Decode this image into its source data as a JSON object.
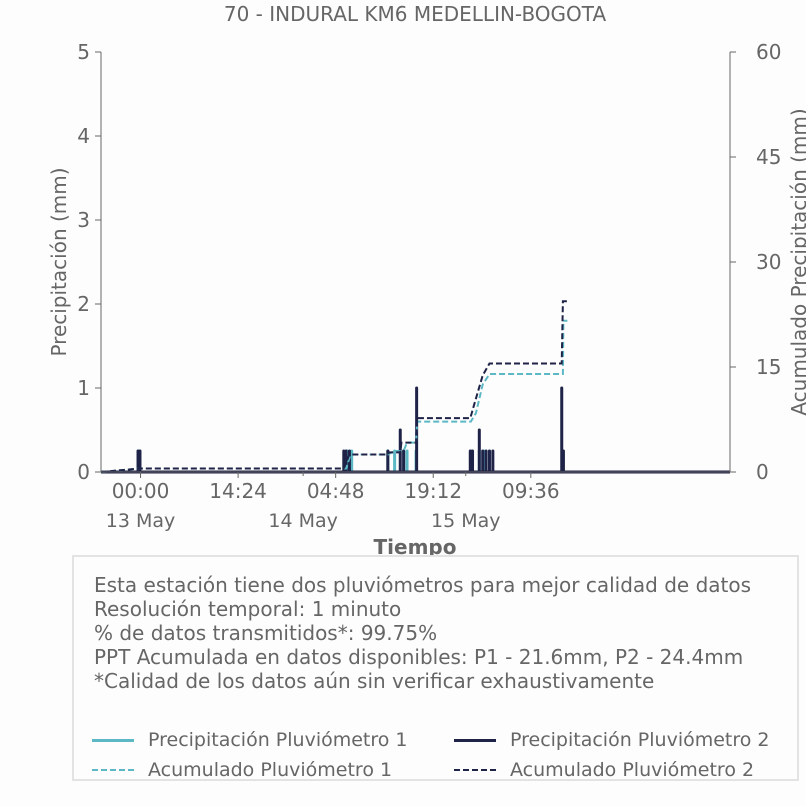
{
  "chart_data": {
    "type": "line",
    "title": "70 - INDURAL KM6 MEDELLIN-BOGOTA",
    "xlabel": "Tiempo",
    "ylabel_left": "Precipitación (mm)",
    "ylabel_right": "Acumulado Precipitación (mm)",
    "ylim_left": [
      0,
      5
    ],
    "ylim_right": [
      0,
      60
    ],
    "yticks_left": [
      "0",
      "1",
      "2",
      "3",
      "4",
      "5"
    ],
    "yticks_right": [
      "0",
      "15",
      "30",
      "45",
      "60"
    ],
    "xlim": [
      "2024-05-12 18:10",
      "2024-05-16 15:00"
    ],
    "xticks": [
      {
        "t": "2024-05-13 00:00",
        "label": "00:00"
      },
      {
        "t": "2024-05-13 14:24",
        "label": "14:24"
      },
      {
        "t": "2024-05-14 04:48",
        "label": "04:48"
      },
      {
        "t": "2024-05-14 19:12",
        "label": "19:12"
      },
      {
        "t": "2024-05-15 09:36",
        "label": "09:36"
      }
    ],
    "date_labels": [
      {
        "t": "2024-05-13 00:00",
        "label": "13 May"
      },
      {
        "t": "2024-05-14 00:00",
        "label": "14 May"
      },
      {
        "t": "2024-05-15 00:00",
        "label": "15 May"
      }
    ],
    "grid": false,
    "series": [
      {
        "name": "Precipitación Pluviómetro 1",
        "axis": "left",
        "style": "bar",
        "color": "#5cb8c4",
        "points": [
          [
            "2024-05-12 23:38",
            0.25
          ],
          [
            "2024-05-12 23:55",
            0.25
          ],
          [
            "2024-05-14 06:30",
            0.25
          ],
          [
            "2024-05-14 07:10",
            0.25
          ],
          [
            "2024-05-14 12:30",
            0.25
          ],
          [
            "2024-05-14 13:30",
            0.25
          ],
          [
            "2024-05-14 14:50",
            0.25
          ],
          [
            "2024-05-14 15:20",
            0.25
          ],
          [
            "2024-05-14 16:40",
            0.25
          ],
          [
            "2024-05-15 00:45",
            0.25
          ],
          [
            "2024-05-15 02:00",
            0.25
          ],
          [
            "2024-05-15 02:40",
            0.25
          ],
          [
            "2024-05-15 03:30",
            0.25
          ],
          [
            "2024-05-15 14:20",
            0.25
          ]
        ]
      },
      {
        "name": "Precipitación Pluviómetro 2",
        "axis": "left",
        "style": "bar",
        "color": "#1f2347",
        "points": [
          [
            "2024-05-12 23:38",
            0.25
          ],
          [
            "2024-05-12 23:55",
            0.25
          ],
          [
            "2024-05-14 06:00",
            0.25
          ],
          [
            "2024-05-14 06:20",
            0.25
          ],
          [
            "2024-05-14 06:50",
            0.25
          ],
          [
            "2024-05-14 12:30",
            0.25
          ],
          [
            "2024-05-14 14:20",
            0.5
          ],
          [
            "2024-05-14 14:50",
            0.25
          ],
          [
            "2024-05-14 16:45",
            1.0
          ],
          [
            "2024-05-15 00:40",
            0.25
          ],
          [
            "2024-05-15 01:00",
            0.25
          ],
          [
            "2024-05-15 02:00",
            0.5
          ],
          [
            "2024-05-15 02:30",
            0.25
          ],
          [
            "2024-05-15 03:00",
            0.25
          ],
          [
            "2024-05-15 03:30",
            0.25
          ],
          [
            "2024-05-15 04:00",
            0.25
          ],
          [
            "2024-05-15 14:10",
            1.0
          ],
          [
            "2024-05-15 14:25",
            0.25
          ]
        ]
      },
      {
        "name": "Acumulado Pluviómetro 1",
        "axis": "right",
        "style": "dashed",
        "color": "#5cb8c4",
        "points": [
          [
            "2024-05-12 18:10",
            0
          ],
          [
            "2024-05-12 23:55",
            0.5
          ],
          [
            "2024-05-14 06:20",
            0.5
          ],
          [
            "2024-05-14 07:00",
            2.5
          ],
          [
            "2024-05-14 12:30",
            2.5
          ],
          [
            "2024-05-14 13:30",
            3.0
          ],
          [
            "2024-05-14 14:50",
            3.0
          ],
          [
            "2024-05-14 15:20",
            4.2
          ],
          [
            "2024-05-14 16:40",
            4.2
          ],
          [
            "2024-05-14 16:50",
            7.2
          ],
          [
            "2024-05-15 00:45",
            7.2
          ],
          [
            "2024-05-15 01:30",
            8.4
          ],
          [
            "2024-05-15 02:30",
            12.5
          ],
          [
            "2024-05-15 03:30",
            14.0
          ],
          [
            "2024-05-15 14:20",
            14.0
          ],
          [
            "2024-05-15 14:25",
            21.6
          ],
          [
            "2024-05-15 15:00",
            21.6
          ]
        ]
      },
      {
        "name": "Acumulado Pluviómetro 2",
        "axis": "right",
        "style": "dashed",
        "color": "#1f2347",
        "points": [
          [
            "2024-05-12 18:10",
            0
          ],
          [
            "2024-05-12 23:55",
            0.5
          ],
          [
            "2024-05-14 06:00",
            0.5
          ],
          [
            "2024-05-14 06:50",
            2.5
          ],
          [
            "2024-05-14 12:30",
            2.5
          ],
          [
            "2024-05-14 12:40",
            2.8
          ],
          [
            "2024-05-14 14:20",
            2.8
          ],
          [
            "2024-05-14 14:30",
            4.2
          ],
          [
            "2024-05-14 16:40",
            4.2
          ],
          [
            "2024-05-14 16:50",
            7.7
          ],
          [
            "2024-05-15 00:40",
            7.7
          ],
          [
            "2024-05-15 01:10",
            9.4
          ],
          [
            "2024-05-15 02:30",
            13.8
          ],
          [
            "2024-05-15 03:30",
            15.5
          ],
          [
            "2024-05-15 14:10",
            15.5
          ],
          [
            "2024-05-15 14:20",
            24.4
          ],
          [
            "2024-05-15 15:00",
            24.4
          ]
        ]
      }
    ]
  },
  "info": {
    "lines": [
      "Esta estación tiene dos pluviómetros para mejor calidad de datos",
      "Resolución temporal: 1 minuto",
      "% de datos transmitidos*: 99.75%",
      "PPT Acumulada en datos disponibles: P1 - 21.6mm, P2 - 24.4mm",
      "*Calidad de los datos aún sin verificar exhaustivamente"
    ]
  },
  "legend": {
    "items": [
      {
        "label": "Precipitación Pluviómetro 1",
        "color": "#5cb8c4",
        "style": "solid"
      },
      {
        "label": "Precipitación Pluviómetro 2",
        "color": "#1f2347",
        "style": "solid"
      },
      {
        "label": "Acumulado Pluviómetro 1",
        "color": "#5cb8c4",
        "style": "dashed"
      },
      {
        "label": "Acumulado Pluviómetro 2",
        "color": "#1f2347",
        "style": "dashed"
      }
    ]
  }
}
